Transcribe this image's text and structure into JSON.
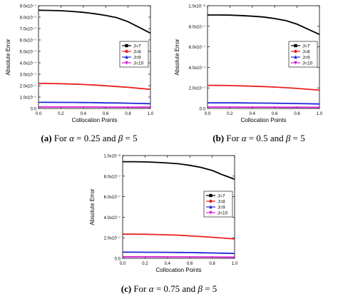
{
  "chart_data": [
    {
      "type": "line",
      "xlabel": "Collocation Points",
      "ylabel": "Absolute Error",
      "xlim": [
        0.0,
        1.0
      ],
      "ylim": [
        0,
        9e-07
      ],
      "xticks": [
        "0.0",
        "0.2",
        "0.4",
        "0.6",
        "0.8",
        "1.0"
      ],
      "yticks": [
        "0.0",
        "1.0x10⁻⁷",
        "2.0x10⁻⁷",
        "3.0x10⁻⁷",
        "4.0x10⁻⁷",
        "5.0x10⁻⁷",
        "6.0x10⁻⁷",
        "7.0x10⁻⁷",
        "8.0x10⁻⁷",
        "9.0x10⁻⁷"
      ],
      "legend_position": "center-right",
      "x": [
        0.0,
        0.1,
        0.2,
        0.3,
        0.4,
        0.5,
        0.6,
        0.7,
        0.8,
        0.9,
        1.0
      ],
      "series": [
        {
          "name": "J=7",
          "color": "#000000",
          "marker": "square",
          "values": [
            8.6e-07,
            8.59e-07,
            8.56e-07,
            8.5e-07,
            8.42e-07,
            8.3e-07,
            8.15e-07,
            7.95e-07,
            7.6e-07,
            7.1e-07,
            6.6e-07
          ]
        },
        {
          "name": "J=8",
          "color": "#e8211e",
          "marker": "circle",
          "values": [
            2.2e-07,
            2.19e-07,
            2.17e-07,
            2.14e-07,
            2.1e-07,
            2.05e-07,
            1.99e-07,
            1.92e-07,
            1.85e-07,
            1.76e-07,
            1.68e-07
          ]
        },
        {
          "name": "J=9",
          "color": "#1f24d6",
          "marker": "triangle",
          "values": [
            5.4e-08,
            5.4e-08,
            5.3e-08,
            5.3e-08,
            5.2e-08,
            5.1e-08,
            4.9e-08,
            4.8e-08,
            4.6e-08,
            4.4e-08,
            4.2e-08
          ]
        },
        {
          "name": "J=10",
          "color": "#d61fd6",
          "marker": "triangle-down",
          "values": [
            1.3e-08,
            1.3e-08,
            1.3e-08,
            1.3e-08,
            1.3e-08,
            1.3e-08,
            1.2e-08,
            1.2e-08,
            1.2e-08,
            1.1e-08,
            1.1e-08
          ]
        }
      ]
    },
    {
      "type": "line",
      "xlabel": "Collocation Points",
      "ylabel": "Absolute Error",
      "xlim": [
        0.0,
        1.0
      ],
      "ylim": [
        0,
        1e-06
      ],
      "xticks": [
        "0.0",
        "0.2",
        "0.4",
        "0.6",
        "0.8",
        "1.0"
      ],
      "yticks": [
        "0.0",
        "2.0x10⁻⁷",
        "4.0x10⁻⁷",
        "6.0x10⁻⁷",
        "8.0x10⁻⁷",
        "1.0x10⁻⁶"
      ],
      "legend_position": "center-right",
      "x": [
        0.0,
        0.1,
        0.2,
        0.3,
        0.4,
        0.5,
        0.6,
        0.7,
        0.8,
        0.9,
        1.0
      ],
      "series": [
        {
          "name": "J=7",
          "color": "#000000",
          "marker": "square",
          "values": [
            9.1e-07,
            9.1e-07,
            9.08e-07,
            9.04e-07,
            8.98e-07,
            8.9e-07,
            8.75e-07,
            8.55e-07,
            8.2e-07,
            7.7e-07,
            7.2e-07
          ]
        },
        {
          "name": "J=8",
          "color": "#e8211e",
          "marker": "circle",
          "values": [
            2.25e-07,
            2.24e-07,
            2.23e-07,
            2.2e-07,
            2.17e-07,
            2.13e-07,
            2.08e-07,
            2.02e-07,
            1.95e-07,
            1.87e-07,
            1.78e-07
          ]
        },
        {
          "name": "J=9",
          "color": "#1f24d6",
          "marker": "triangle",
          "values": [
            5.5e-08,
            5.5e-08,
            5.5e-08,
            5.4e-08,
            5.3e-08,
            5.2e-08,
            5.1e-08,
            4.9e-08,
            4.8e-08,
            4.6e-08,
            4.4e-08
          ]
        },
        {
          "name": "J=10",
          "color": "#d61fd6",
          "marker": "triangle-down",
          "values": [
            1.4e-08,
            1.4e-08,
            1.4e-08,
            1.3e-08,
            1.3e-08,
            1.3e-08,
            1.3e-08,
            1.2e-08,
            1.2e-08,
            1.1e-08,
            1.1e-08
          ]
        }
      ]
    },
    {
      "type": "line",
      "xlabel": "Collocation Points",
      "ylabel": "Absolute Error",
      "xlim": [
        0.0,
        1.0
      ],
      "ylim": [
        0,
        1e-06
      ],
      "xticks": [
        "0.0",
        "0.2",
        "0.4",
        "0.6",
        "0.8",
        "1.0"
      ],
      "yticks": [
        "0.0",
        "2.0x10⁻⁷",
        "4.0x10⁻⁷",
        "6.0x10⁻⁷",
        "8.0x10⁻⁷",
        "1.0x10⁻⁶"
      ],
      "legend_position": "center-right",
      "x": [
        0.0,
        0.1,
        0.2,
        0.3,
        0.4,
        0.5,
        0.6,
        0.7,
        0.8,
        0.9,
        1.0
      ],
      "series": [
        {
          "name": "J=7",
          "color": "#000000",
          "marker": "square",
          "values": [
            9.4e-07,
            9.4e-07,
            9.38e-07,
            9.34e-07,
            9.28e-07,
            9.2e-07,
            9.05e-07,
            8.85e-07,
            8.55e-07,
            8.1e-07,
            7.7e-07
          ]
        },
        {
          "name": "J=8",
          "color": "#e8211e",
          "marker": "circle",
          "values": [
            2.35e-07,
            2.35e-07,
            2.34e-07,
            2.32e-07,
            2.29e-07,
            2.25e-07,
            2.19e-07,
            2.12e-07,
            2.05e-07,
            1.97e-07,
            1.88e-07
          ]
        },
        {
          "name": "J=9",
          "color": "#1f24d6",
          "marker": "triangle",
          "values": [
            6e-08,
            6e-08,
            5.9e-08,
            5.9e-08,
            5.8e-08,
            5.7e-08,
            5.6e-08,
            5.4e-08,
            5.2e-08,
            5e-08,
            4.8e-08
          ]
        },
        {
          "name": "J=10",
          "color": "#d61fd6",
          "marker": "triangle-down",
          "values": [
            1.5e-08,
            1.5e-08,
            1.5e-08,
            1.5e-08,
            1.4e-08,
            1.4e-08,
            1.4e-08,
            1.3e-08,
            1.3e-08,
            1.2e-08,
            1.2e-08
          ]
        }
      ]
    }
  ],
  "captions": [
    {
      "label": "(a)",
      "text_prefix": "For",
      "alpha_symbol": "α",
      "alpha_value": "= 0.25",
      "conj": "and",
      "beta_symbol": "β",
      "beta_value": "= 5"
    },
    {
      "label": "(b)",
      "text_prefix": "For",
      "alpha_symbol": "α",
      "alpha_value": "= 0.5",
      "conj": "and",
      "beta_symbol": "β",
      "beta_value": "= 5"
    },
    {
      "label": "(c)",
      "text_prefix": "For",
      "alpha_symbol": "α",
      "alpha_value": "= 0.75",
      "conj": "and",
      "beta_symbol": "β",
      "beta_value": "= 5"
    }
  ]
}
